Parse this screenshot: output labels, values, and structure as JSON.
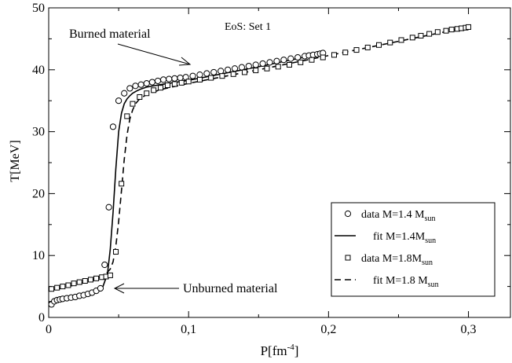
{
  "chart_data": {
    "type": "scatter",
    "xlabel": "P[fm",
    "xlabel_sup": "-4",
    "xlabel_tail": "]",
    "ylabel": "T[MeV]",
    "xlim": [
      0,
      0.33
    ],
    "ylim": [
      0,
      50
    ],
    "x_ticks": [
      0,
      0.1,
      0.2,
      0.3
    ],
    "x_tick_labels": [
      "0",
      "0,1",
      "0,2",
      "0,3"
    ],
    "y_ticks": [
      0,
      10,
      20,
      30,
      40,
      50
    ],
    "y_tick_labels": [
      "0",
      "10",
      "20",
      "30",
      "40",
      "50"
    ],
    "grid": false,
    "legend_position": "bottom-right",
    "annotations": {
      "eos": "EoS: Set 1",
      "burned": "Burned material",
      "unburned": "Unburned material"
    },
    "series": [
      {
        "name": "data M=1.4 M",
        "name_sub": "sun",
        "kind": "scatter",
        "marker": "circle",
        "x": [
          0.002,
          0.004,
          0.006,
          0.008,
          0.01,
          0.013,
          0.016,
          0.019,
          0.022,
          0.025,
          0.028,
          0.031,
          0.034,
          0.037,
          0.04,
          0.043,
          0.046,
          0.05,
          0.054,
          0.058,
          0.062,
          0.066,
          0.07,
          0.074,
          0.078,
          0.082,
          0.086,
          0.09,
          0.094,
          0.098,
          0.103,
          0.108,
          0.113,
          0.118,
          0.123,
          0.128,
          0.133,
          0.138,
          0.143,
          0.148,
          0.153,
          0.158,
          0.163,
          0.168,
          0.173,
          0.178,
          0.183,
          0.186,
          0.189,
          0.192,
          0.194,
          0.196
        ],
        "y": [
          2.1,
          2.6,
          2.8,
          2.9,
          3.0,
          3.1,
          3.2,
          3.3,
          3.5,
          3.6,
          3.8,
          4.0,
          4.3,
          4.7,
          8.5,
          17.8,
          30.8,
          35.0,
          36.2,
          37.0,
          37.4,
          37.6,
          37.8,
          38.0,
          38.2,
          38.4,
          38.5,
          38.6,
          38.7,
          38.8,
          39.0,
          39.2,
          39.4,
          39.6,
          39.8,
          40.0,
          40.2,
          40.4,
          40.6,
          40.8,
          41.0,
          41.2,
          41.4,
          41.6,
          41.8,
          42.0,
          42.2,
          42.3,
          42.4,
          42.5,
          42.6,
          42.7
        ]
      },
      {
        "name": "fit  M=1.4M",
        "name_sub": "sun",
        "kind": "line",
        "dash": "solid",
        "x": [
          0.0,
          0.01,
          0.02,
          0.03,
          0.038,
          0.042,
          0.044,
          0.046,
          0.048,
          0.05,
          0.052,
          0.054,
          0.056,
          0.058,
          0.06,
          0.063,
          0.066,
          0.07,
          0.08,
          0.1,
          0.15,
          0.195
        ],
        "y": [
          2.5,
          2.9,
          3.2,
          3.6,
          4.5,
          7.0,
          11.0,
          17.0,
          24.0,
          30.0,
          33.0,
          34.5,
          35.3,
          35.8,
          36.2,
          36.6,
          36.9,
          37.2,
          37.6,
          38.3,
          40.5,
          42.6
        ]
      },
      {
        "name": "data M=1.8M",
        "name_sub": "sun",
        "kind": "scatter",
        "marker": "square",
        "x": [
          0.002,
          0.006,
          0.01,
          0.014,
          0.018,
          0.022,
          0.026,
          0.03,
          0.034,
          0.038,
          0.041,
          0.044,
          0.048,
          0.052,
          0.056,
          0.06,
          0.065,
          0.07,
          0.075,
          0.08,
          0.085,
          0.09,
          0.095,
          0.1,
          0.108,
          0.116,
          0.124,
          0.132,
          0.14,
          0.148,
          0.156,
          0.164,
          0.172,
          0.18,
          0.188,
          0.196,
          0.204,
          0.212,
          0.22,
          0.228,
          0.236,
          0.244,
          0.252,
          0.26,
          0.266,
          0.272,
          0.278,
          0.284,
          0.288,
          0.292,
          0.295,
          0.298,
          0.3
        ],
        "y": [
          4.6,
          4.8,
          5.0,
          5.2,
          5.5,
          5.7,
          5.9,
          6.1,
          6.3,
          6.5,
          6.6,
          6.8,
          10.6,
          21.6,
          32.5,
          34.5,
          35.6,
          36.2,
          36.7,
          37.1,
          37.5,
          37.7,
          37.9,
          38.1,
          38.4,
          38.7,
          39.0,
          39.3,
          39.6,
          39.9,
          40.2,
          40.5,
          40.8,
          41.2,
          41.6,
          42.0,
          42.4,
          42.8,
          43.2,
          43.6,
          44.0,
          44.4,
          44.8,
          45.2,
          45.5,
          45.8,
          46.1,
          46.3,
          46.5,
          46.6,
          46.7,
          46.8,
          46.9
        ]
      },
      {
        "name": "fit  M=1.8 M",
        "name_sub": "sun",
        "kind": "line",
        "dash": "dashed",
        "x": [
          0.0,
          0.01,
          0.02,
          0.03,
          0.04,
          0.044,
          0.046,
          0.048,
          0.05,
          0.052,
          0.054,
          0.056,
          0.058,
          0.06,
          0.062,
          0.065,
          0.07,
          0.08,
          0.1,
          0.15,
          0.2,
          0.25,
          0.3
        ],
        "y": [
          4.3,
          4.8,
          5.3,
          5.9,
          6.8,
          7.8,
          9.0,
          11.5,
          15.5,
          20.5,
          25.5,
          29.5,
          32.0,
          33.5,
          34.5,
          35.3,
          36.0,
          36.8,
          37.8,
          40.0,
          42.3,
          44.6,
          46.9
        ]
      }
    ]
  }
}
